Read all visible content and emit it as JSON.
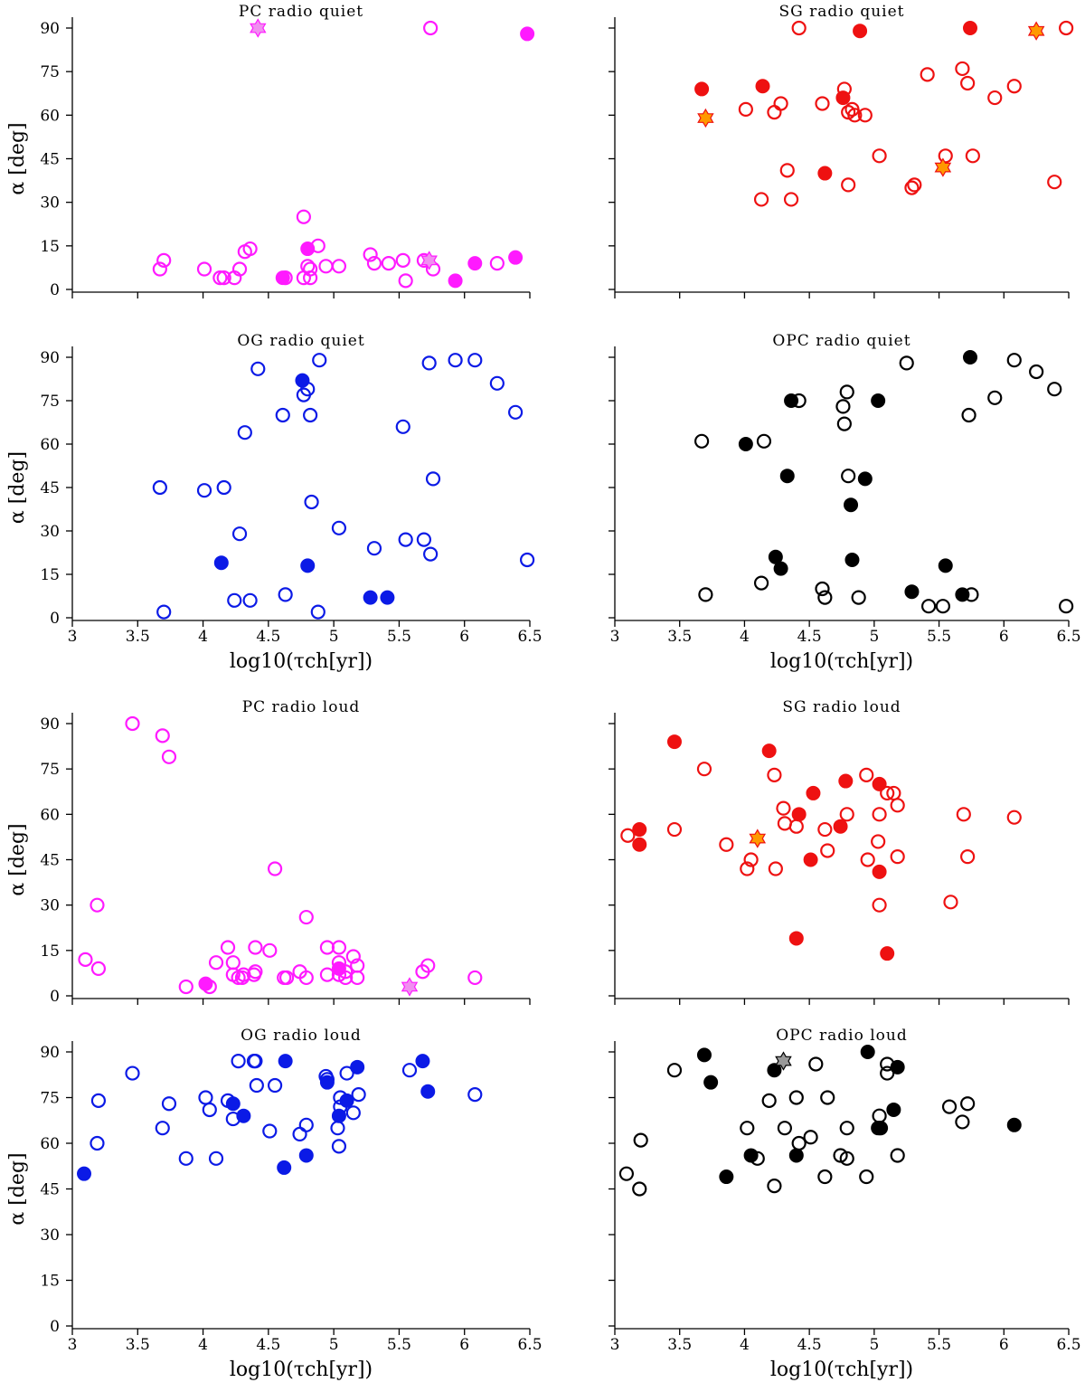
{
  "labels": {
    "xlabel": "log10(τch[yr])",
    "ylabel": "α [deg]"
  },
  "colors": {
    "PC": "#ff1aff",
    "SG": "#ee1111",
    "OG": "#0b1ae6",
    "OPC": "#000000",
    "star_PC": "#f08ff0",
    "star_SG": "#ff9900",
    "star_OPC": "#999999"
  },
  "chart_data": [
    {
      "type": "scatter",
      "title": "PC radio quiet",
      "model": "PC",
      "xlim": [
        3,
        6.5
      ],
      "ylim": [
        0,
        90
      ],
      "x_ticks": [
        "3",
        "3.5",
        "4",
        "4.5",
        "5",
        "5.5",
        "6",
        "6.5"
      ],
      "y_ticks": [
        "0",
        "15",
        "30",
        "45",
        "60",
        "75",
        "90"
      ],
      "show_x_tick_labels": false,
      "open": [
        [
          3.67,
          7
        ],
        [
          3.7,
          10
        ],
        [
          4.01,
          7
        ],
        [
          4.13,
          4
        ],
        [
          4.16,
          4
        ],
        [
          4.24,
          4
        ],
        [
          4.28,
          7
        ],
        [
          4.32,
          13
        ],
        [
          4.36,
          14
        ],
        [
          4.63,
          4
        ],
        [
          4.77,
          25
        ],
        [
          4.77,
          4
        ],
        [
          4.8,
          8
        ],
        [
          4.82,
          7
        ],
        [
          4.82,
          4
        ],
        [
          4.88,
          15
        ],
        [
          4.94,
          8
        ],
        [
          5.04,
          8
        ],
        [
          5.28,
          12
        ],
        [
          5.31,
          9
        ],
        [
          5.42,
          9
        ],
        [
          5.53,
          10
        ],
        [
          5.55,
          3
        ],
        [
          5.69,
          10
        ],
        [
          5.74,
          90
        ],
        [
          5.76,
          7
        ],
        [
          6.25,
          9
        ]
      ],
      "filled": [
        [
          4.61,
          4
        ],
        [
          4.8,
          14
        ],
        [
          5.93,
          3
        ],
        [
          6.08,
          9
        ],
        [
          6.39,
          11
        ],
        [
          6.48,
          88
        ]
      ],
      "stars": [
        [
          4.42,
          90
        ],
        [
          5.73,
          10
        ]
      ]
    },
    {
      "type": "scatter",
      "title": "SG radio quiet",
      "model": "SG",
      "xlim": [
        3,
        6.5
      ],
      "ylim": [
        0,
        90
      ],
      "x_ticks": [
        "3",
        "3.5",
        "4",
        "4.5",
        "5",
        "5.5",
        "6",
        "6.5"
      ],
      "y_ticks": [
        "0",
        "15",
        "30",
        "45",
        "60",
        "75",
        "90"
      ],
      "show_x_tick_labels": false,
      "open": [
        [
          4.01,
          62
        ],
        [
          4.13,
          31
        ],
        [
          4.23,
          61
        ],
        [
          4.28,
          64
        ],
        [
          4.33,
          41
        ],
        [
          4.36,
          31
        ],
        [
          4.42,
          90
        ],
        [
          4.6,
          64
        ],
        [
          4.77,
          69
        ],
        [
          4.8,
          36
        ],
        [
          4.8,
          61
        ],
        [
          4.83,
          62
        ],
        [
          4.85,
          60
        ],
        [
          4.93,
          60
        ],
        [
          5.04,
          46
        ],
        [
          5.29,
          35
        ],
        [
          5.31,
          36
        ],
        [
          5.55,
          46
        ],
        [
          5.41,
          74
        ],
        [
          5.68,
          76
        ],
        [
          5.72,
          71
        ],
        [
          5.76,
          46
        ],
        [
          5.93,
          66
        ],
        [
          6.08,
          70
        ],
        [
          6.39,
          37
        ],
        [
          6.48,
          90
        ]
      ],
      "filled": [
        [
          3.67,
          69
        ],
        [
          4.14,
          70
        ],
        [
          4.62,
          40
        ],
        [
          4.76,
          66
        ],
        [
          4.89,
          89
        ],
        [
          5.74,
          90
        ]
      ],
      "stars": [
        [
          3.7,
          59
        ],
        [
          5.53,
          42
        ],
        [
          6.25,
          89
        ]
      ]
    },
    {
      "type": "scatter",
      "title": "OG radio quiet",
      "model": "OG",
      "xlim": [
        3,
        6.5
      ],
      "ylim": [
        0,
        90
      ],
      "x_ticks": [
        "3",
        "3.5",
        "4",
        "4.5",
        "5",
        "5.5",
        "6",
        "6.5"
      ],
      "y_ticks": [
        "0",
        "15",
        "30",
        "45",
        "60",
        "75",
        "90"
      ],
      "show_x_tick_labels": true,
      "open": [
        [
          3.67,
          45
        ],
        [
          3.7,
          2
        ],
        [
          4.01,
          44
        ],
        [
          4.16,
          45
        ],
        [
          4.24,
          6
        ],
        [
          4.28,
          29
        ],
        [
          4.32,
          64
        ],
        [
          4.36,
          6
        ],
        [
          4.42,
          86
        ],
        [
          4.61,
          70
        ],
        [
          4.63,
          8
        ],
        [
          4.77,
          77
        ],
        [
          4.8,
          79
        ],
        [
          4.82,
          70
        ],
        [
          4.83,
          40
        ],
        [
          4.88,
          2
        ],
        [
          4.89,
          89
        ],
        [
          5.04,
          31
        ],
        [
          5.31,
          24
        ],
        [
          5.53,
          66
        ],
        [
          5.55,
          27
        ],
        [
          5.69,
          27
        ],
        [
          5.73,
          88
        ],
        [
          5.74,
          22
        ],
        [
          5.76,
          48
        ],
        [
          5.93,
          89
        ],
        [
          6.08,
          89
        ],
        [
          6.25,
          81
        ],
        [
          6.39,
          71
        ],
        [
          6.48,
          20
        ]
      ],
      "filled": [
        [
          4.14,
          19
        ],
        [
          4.76,
          82
        ],
        [
          4.8,
          18
        ],
        [
          5.28,
          7
        ],
        [
          5.41,
          7
        ]
      ],
      "stars": []
    },
    {
      "type": "scatter",
      "title": "OPC radio quiet",
      "model": "OPC",
      "xlim": [
        3,
        6.5
      ],
      "ylim": [
        0,
        90
      ],
      "x_ticks": [
        "3",
        "3.5",
        "4",
        "4.5",
        "5",
        "5.5",
        "6",
        "6.5"
      ],
      "y_ticks": [
        "0",
        "15",
        "30",
        "45",
        "60",
        "75",
        "90"
      ],
      "show_x_tick_labels": true,
      "open": [
        [
          3.67,
          61
        ],
        [
          3.7,
          8
        ],
        [
          4.13,
          12
        ],
        [
          4.15,
          61
        ],
        [
          4.42,
          75
        ],
        [
          4.6,
          10
        ],
        [
          4.62,
          7
        ],
        [
          4.76,
          73
        ],
        [
          4.77,
          67
        ],
        [
          4.79,
          78
        ],
        [
          4.8,
          49
        ],
        [
          4.88,
          7
        ],
        [
          5.25,
          88
        ],
        [
          5.42,
          4
        ],
        [
          5.53,
          4
        ],
        [
          5.73,
          70
        ],
        [
          5.75,
          8
        ],
        [
          5.93,
          76
        ],
        [
          6.08,
          89
        ],
        [
          6.25,
          85
        ],
        [
          6.39,
          79
        ],
        [
          6.48,
          4
        ]
      ],
      "filled": [
        [
          4.01,
          60
        ],
        [
          4.24,
          21
        ],
        [
          4.28,
          17
        ],
        [
          4.33,
          49
        ],
        [
          4.36,
          75
        ],
        [
          4.82,
          39
        ],
        [
          4.83,
          20
        ],
        [
          4.93,
          48
        ],
        [
          5.03,
          75
        ],
        [
          5.29,
          9
        ],
        [
          5.55,
          18
        ],
        [
          5.68,
          8
        ],
        [
          5.74,
          90
        ]
      ],
      "stars": []
    },
    {
      "type": "scatter",
      "title": "PC radio loud",
      "model": "PC",
      "xlim": [
        3,
        6.5
      ],
      "ylim": [
        0,
        90
      ],
      "x_ticks": [
        "3",
        "3.5",
        "4",
        "4.5",
        "5",
        "5.5",
        "6",
        "6.5"
      ],
      "y_ticks": [
        "0",
        "15",
        "30",
        "45",
        "60",
        "75",
        "90"
      ],
      "show_x_tick_labels": false,
      "open": [
        [
          3.1,
          12
        ],
        [
          3.19,
          30
        ],
        [
          3.2,
          9
        ],
        [
          3.46,
          90
        ],
        [
          3.69,
          86
        ],
        [
          3.74,
          79
        ],
        [
          3.87,
          3
        ],
        [
          4.05,
          3
        ],
        [
          4.1,
          11
        ],
        [
          4.19,
          16
        ],
        [
          4.23,
          11
        ],
        [
          4.23,
          7
        ],
        [
          4.27,
          6
        ],
        [
          4.3,
          6
        ],
        [
          4.31,
          7
        ],
        [
          4.39,
          7
        ],
        [
          4.4,
          8
        ],
        [
          4.4,
          16
        ],
        [
          4.51,
          15
        ],
        [
          4.55,
          42
        ],
        [
          4.62,
          6
        ],
        [
          4.64,
          6
        ],
        [
          4.74,
          8
        ],
        [
          4.79,
          26
        ],
        [
          4.79,
          6
        ],
        [
          4.95,
          16
        ],
        [
          4.95,
          7
        ],
        [
          5.04,
          16
        ],
        [
          5.04,
          11
        ],
        [
          5.04,
          7
        ],
        [
          5.09,
          8
        ],
        [
          5.09,
          6
        ],
        [
          5.15,
          13
        ],
        [
          5.18,
          10
        ],
        [
          5.18,
          6
        ],
        [
          5.68,
          8
        ],
        [
          5.72,
          10
        ],
        [
          6.08,
          6
        ]
      ],
      "filled": [
        [
          4.02,
          4
        ],
        [
          5.04,
          9
        ]
      ],
      "stars": [
        [
          5.58,
          3
        ]
      ]
    },
    {
      "type": "scatter",
      "title": "SG radio loud",
      "model": "SG",
      "xlim": [
        3,
        6.5
      ],
      "ylim": [
        0,
        90
      ],
      "x_ticks": [
        "3",
        "3.5",
        "4",
        "4.5",
        "5",
        "5.5",
        "6",
        "6.5"
      ],
      "y_ticks": [
        "0",
        "15",
        "30",
        "45",
        "60",
        "75",
        "90"
      ],
      "show_x_tick_labels": false,
      "open": [
        [
          3.1,
          53
        ],
        [
          3.46,
          55
        ],
        [
          3.69,
          75
        ],
        [
          3.86,
          50
        ],
        [
          4.02,
          42
        ],
        [
          4.05,
          45
        ],
        [
          4.23,
          73
        ],
        [
          4.24,
          42
        ],
        [
          4.3,
          62
        ],
        [
          4.31,
          57
        ],
        [
          4.4,
          56
        ],
        [
          4.62,
          55
        ],
        [
          4.64,
          48
        ],
        [
          4.79,
          60
        ],
        [
          4.94,
          73
        ],
        [
          4.95,
          45
        ],
        [
          5.03,
          51
        ],
        [
          5.04,
          60
        ],
        [
          5.04,
          30
        ],
        [
          5.1,
          67
        ],
        [
          5.15,
          67
        ],
        [
          5.18,
          63
        ],
        [
          5.18,
          46
        ],
        [
          5.59,
          31
        ],
        [
          5.69,
          60
        ],
        [
          5.72,
          46
        ],
        [
          6.08,
          59
        ]
      ],
      "filled": [
        [
          3.19,
          55
        ],
        [
          3.19,
          50
        ],
        [
          3.46,
          84
        ],
        [
          4.19,
          81
        ],
        [
          4.4,
          19
        ],
        [
          4.42,
          60
        ],
        [
          4.51,
          45
        ],
        [
          4.53,
          67
        ],
        [
          4.74,
          56
        ],
        [
          4.78,
          71
        ],
        [
          5.04,
          70
        ],
        [
          5.04,
          41
        ],
        [
          5.1,
          14
        ]
      ],
      "stars": [
        [
          4.1,
          52
        ]
      ]
    },
    {
      "type": "scatter",
      "title": "OG radio loud",
      "model": "OG",
      "xlim": [
        3,
        6.5
      ],
      "ylim": [
        0,
        90
      ],
      "x_ticks": [
        "3",
        "3.5",
        "4",
        "4.5",
        "5",
        "5.5",
        "6",
        "6.5"
      ],
      "y_ticks": [
        "0",
        "15",
        "30",
        "45",
        "60",
        "75",
        "90"
      ],
      "show_x_tick_labels": true,
      "open": [
        [
          3.19,
          60
        ],
        [
          3.2,
          74
        ],
        [
          3.46,
          83
        ],
        [
          3.69,
          65
        ],
        [
          3.74,
          73
        ],
        [
          3.87,
          55
        ],
        [
          4.02,
          75
        ],
        [
          4.05,
          71
        ],
        [
          4.1,
          55
        ],
        [
          4.19,
          74
        ],
        [
          4.23,
          68
        ],
        [
          4.27,
          87
        ],
        [
          4.39,
          87
        ],
        [
          4.4,
          87
        ],
        [
          4.41,
          79
        ],
        [
          4.51,
          64
        ],
        [
          4.55,
          79
        ],
        [
          4.74,
          63
        ],
        [
          4.79,
          66
        ],
        [
          4.94,
          82
        ],
        [
          4.95,
          81
        ],
        [
          5.03,
          65
        ],
        [
          5.04,
          59
        ],
        [
          5.05,
          75
        ],
        [
          5.05,
          72
        ],
        [
          5.1,
          83
        ],
        [
          5.15,
          70
        ],
        [
          5.19,
          76
        ],
        [
          5.58,
          84
        ],
        [
          6.08,
          76
        ]
      ],
      "filled": [
        [
          3.09,
          50
        ],
        [
          4.23,
          73
        ],
        [
          4.31,
          69
        ],
        [
          4.62,
          52
        ],
        [
          4.63,
          87
        ],
        [
          4.79,
          56
        ],
        [
          4.95,
          80
        ],
        [
          5.04,
          69
        ],
        [
          5.1,
          74
        ],
        [
          5.18,
          85
        ],
        [
          5.68,
          87
        ],
        [
          5.72,
          77
        ]
      ],
      "stars": []
    },
    {
      "type": "scatter",
      "title": "OPC radio loud",
      "model": "OPC",
      "xlim": [
        3,
        6.5
      ],
      "ylim": [
        0,
        90
      ],
      "x_ticks": [
        "3",
        "3.5",
        "4",
        "4.5",
        "5",
        "5.5",
        "6",
        "6.5"
      ],
      "y_ticks": [
        "0",
        "15",
        "30",
        "45",
        "60",
        "75",
        "90"
      ],
      "show_x_tick_labels": true,
      "open": [
        [
          3.09,
          50
        ],
        [
          3.19,
          45
        ],
        [
          3.2,
          61
        ],
        [
          3.46,
          84
        ],
        [
          4.02,
          65
        ],
        [
          4.1,
          55
        ],
        [
          4.19,
          74
        ],
        [
          4.23,
          46
        ],
        [
          4.31,
          65
        ],
        [
          4.4,
          75
        ],
        [
          4.42,
          60
        ],
        [
          4.51,
          62
        ],
        [
          4.55,
          86
        ],
        [
          4.62,
          49
        ],
        [
          4.64,
          75
        ],
        [
          4.74,
          56
        ],
        [
          4.79,
          55
        ],
        [
          4.79,
          65
        ],
        [
          4.94,
          49
        ],
        [
          5.04,
          69
        ],
        [
          5.05,
          65
        ],
        [
          5.1,
          86
        ],
        [
          5.1,
          83
        ],
        [
          5.18,
          56
        ],
        [
          5.58,
          72
        ],
        [
          5.68,
          67
        ],
        [
          5.72,
          73
        ]
      ],
      "filled": [
        [
          3.69,
          89
        ],
        [
          3.74,
          80
        ],
        [
          3.86,
          49
        ],
        [
          4.05,
          56
        ],
        [
          4.23,
          84
        ],
        [
          4.4,
          56
        ],
        [
          4.95,
          90
        ],
        [
          5.03,
          65
        ],
        [
          5.04,
          65
        ],
        [
          5.15,
          71
        ],
        [
          5.18,
          85
        ],
        [
          6.08,
          66
        ]
      ],
      "stars": [
        [
          4.3,
          87
        ]
      ]
    }
  ]
}
